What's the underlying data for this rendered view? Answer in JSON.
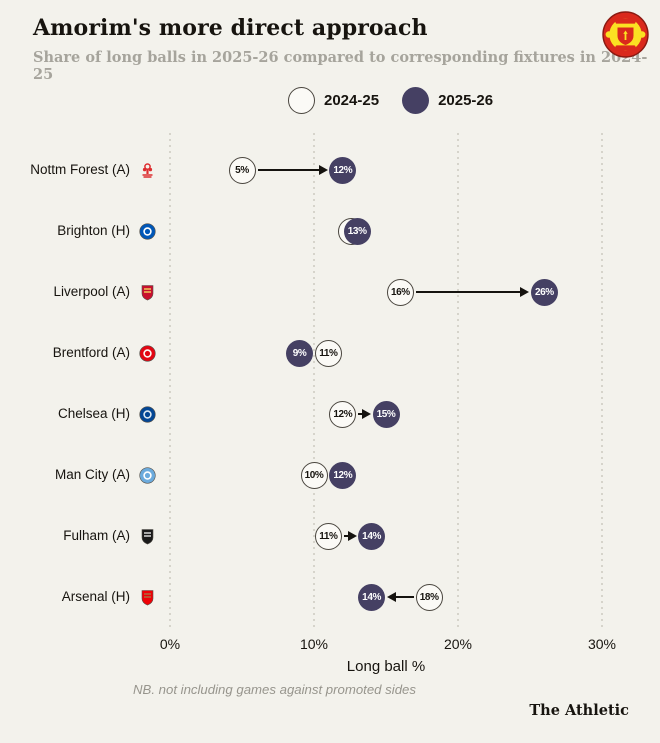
{
  "header": {
    "title": "Amorim's more direct approach",
    "subtitle": "Share of long balls in 2025-26 compared to corresponding fixtures in 2024-25"
  },
  "legend": [
    {
      "label": "2024-25",
      "variant": "open"
    },
    {
      "label": "2025-26",
      "variant": "filled"
    }
  ],
  "colors": {
    "background": "#f3f2ec",
    "filled_circle": "#454063",
    "open_circle_bg": "#fbfaf6",
    "open_circle_border": "#4a463f",
    "arrow": "#15130f",
    "gridline": "#d6d4cb",
    "subtitle_text": "#a6a49c",
    "footnote_text": "#97958d"
  },
  "chart_data": {
    "type": "dumbbell",
    "title": "Amorim's more direct approach",
    "subtitle": "Share of long balls in 2025-26 compared to corresponding fixtures in 2024-25",
    "xlabel": "Long ball %",
    "xlim": [
      0,
      34
    ],
    "x_ticks": [
      {
        "value": 0,
        "label": "0%"
      },
      {
        "value": 10,
        "label": "10%"
      },
      {
        "value": 20,
        "label": "20%"
      },
      {
        "value": 30,
        "label": "30%"
      }
    ],
    "series_labels": [
      "2024-25",
      "2025-26"
    ],
    "rows": [
      {
        "team": "Nottm Forest (A)",
        "value_2024_25": 5,
        "value_2025_26": 12,
        "label_2024_25": "5%",
        "label_2025_26": "12%",
        "arrow": true,
        "logo": {
          "shape": "tree",
          "primary": "#dd2d2f",
          "secondary": "#dd2d2f"
        }
      },
      {
        "team": "Brighton (H)",
        "value_2024_25": 12.6,
        "value_2025_26": 13,
        "label_2024_25": "",
        "label_2025_26": "13%",
        "arrow": false,
        "logo": {
          "shape": "circle",
          "primary": "#0057b8",
          "secondary": "#ffffff"
        }
      },
      {
        "team": "Liverpool (A)",
        "value_2024_25": 16,
        "value_2025_26": 26,
        "label_2024_25": "16%",
        "label_2025_26": "26%",
        "arrow": true,
        "logo": {
          "shape": "shield",
          "primary": "#c8102e",
          "secondary": "#f6eb61"
        }
      },
      {
        "team": "Brentford (A)",
        "value_2024_25": 11,
        "value_2025_26": 9,
        "label_2024_25": "11%",
        "label_2025_26": "9%",
        "arrow": false,
        "logo": {
          "shape": "circle",
          "primary": "#e30613",
          "secondary": "#fbf9f5"
        }
      },
      {
        "team": "Chelsea (H)",
        "value_2024_25": 12,
        "value_2025_26": 15,
        "label_2024_25": "12%",
        "label_2025_26": "15%",
        "arrow": true,
        "logo": {
          "shape": "circle",
          "primary": "#034694",
          "secondary": "#dbe7f2"
        }
      },
      {
        "team": "Man City (A)",
        "value_2024_25": 10,
        "value_2025_26": 12,
        "label_2024_25": "10%",
        "label_2025_26": "12%",
        "arrow": false,
        "logo": {
          "shape": "circle",
          "primary": "#6cabdd",
          "secondary": "#ffffff"
        }
      },
      {
        "team": "Fulham (A)",
        "value_2024_25": 11,
        "value_2025_26": 14,
        "label_2024_25": "11%",
        "label_2025_26": "14%",
        "arrow": true,
        "logo": {
          "shape": "shield",
          "primary": "#1a1a1a",
          "secondary": "#ffffff"
        }
      },
      {
        "team": "Arsenal (H)",
        "value_2024_25": 18,
        "value_2025_26": 14,
        "label_2024_25": "18%",
        "label_2025_26": "14%",
        "arrow": true,
        "logo": {
          "shape": "shield",
          "primary": "#ef0107",
          "secondary": "#9c824a"
        }
      }
    ],
    "footnote": "NB. not including games against promoted sides"
  },
  "branding": {
    "wordmark": "The Athletic",
    "crest": "manchester-united-crest"
  }
}
